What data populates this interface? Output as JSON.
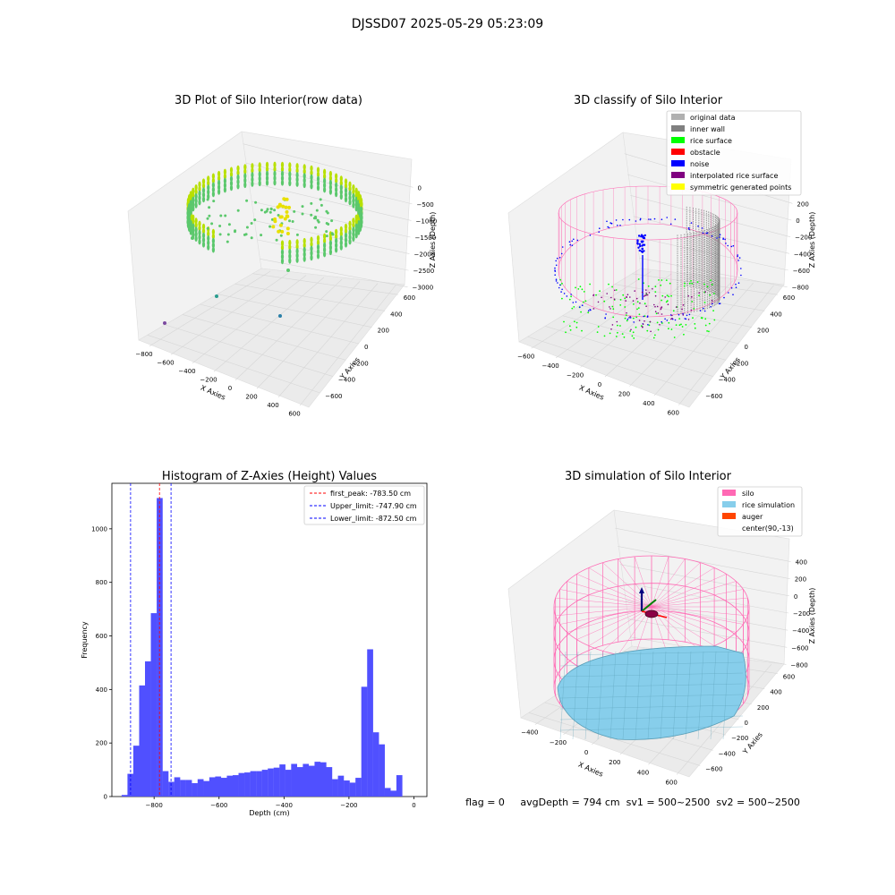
{
  "figure_title": "DJSSD07 2025-05-29 05:23:09",
  "status_line": "flag = 0     avgDepth = 794 cm  sv1 = 500~2500  sv2 = 500~2500",
  "colors": {
    "point_low": "#b8e000",
    "point_high": "#5bc86c",
    "inner_wall": "#808080",
    "rice_surface": "#00ff00",
    "noise": "#0000ff",
    "silo": "#ff69b4",
    "rice_sim": "#87ceeb",
    "hist_bar": "#5050ff"
  },
  "chart_data": [
    {
      "id": "raw",
      "type": "scatter3d",
      "title": "3D Plot of Silo Interior(row data)",
      "xlabel": "X Axies",
      "ylabel": "Y Axies",
      "zlabel": "Z Axies (Depth)",
      "xticks": [
        "−800",
        "−600",
        "−400",
        "−200",
        "0",
        "200",
        "400",
        "600"
      ],
      "yticks": [
        "−600",
        "−400",
        "−200",
        "0",
        "200",
        "400",
        "600"
      ],
      "zticks": [
        "0",
        "−500",
        "−1000",
        "−1500",
        "−2000",
        "−2500",
        "−3000"
      ],
      "xlim": [
        -800,
        600
      ],
      "ylim": [
        -650,
        650
      ],
      "zlim": [
        -3500,
        0
      ]
    },
    {
      "id": "classify",
      "type": "scatter3d",
      "title": "3D classify of Silo Interior",
      "xlabel": "X Axies",
      "ylabel": "Y Axies",
      "zlabel": "Z Axies (Depth)",
      "xticks": [
        "−600",
        "−400",
        "−200",
        "0",
        "200",
        "400",
        "600"
      ],
      "yticks": [
        "−600",
        "−400",
        "−200",
        "0",
        "200",
        "400",
        "600"
      ],
      "zticks": [
        "200",
        "0",
        "−200",
        "−400",
        "−600",
        "−800"
      ],
      "xlim": [
        -650,
        650
      ],
      "ylim": [
        -650,
        650
      ],
      "zlim": [
        -900,
        250
      ],
      "legend": [
        {
          "label": "original data",
          "color": "#b0b0b0"
        },
        {
          "label": "inner wall",
          "color": "#808080"
        },
        {
          "label": "rice surface",
          "color": "#00ff00"
        },
        {
          "label": "obstacle",
          "color": "#ff0000"
        },
        {
          "label": "noise",
          "color": "#0000ff"
        },
        {
          "label": "interpolated rice surface",
          "color": "#800080"
        },
        {
          "label": "symmetric generated points",
          "color": "#ffff00"
        }
      ]
    },
    {
      "id": "hist",
      "type": "bar",
      "title": "Histogram of Z-Axies (Height) Values",
      "xlabel": "Depth (cm)",
      "ylabel": "Frequency",
      "xlim": [
        -930,
        40
      ],
      "ylim": [
        0,
        1170
      ],
      "xticks": [
        {
          "v": -800,
          "t": "−800"
        },
        {
          "v": -600,
          "t": "−600"
        },
        {
          "v": -400,
          "t": "−400"
        },
        {
          "v": -200,
          "t": "−200"
        },
        {
          "v": 0,
          "t": "0"
        }
      ],
      "yticks": [
        0,
        200,
        400,
        600,
        800,
        1000
      ],
      "bin_start": -900,
      "bin_width": 18,
      "values": [
        6,
        85,
        190,
        415,
        505,
        685,
        1115,
        95,
        55,
        72,
        62,
        62,
        50,
        65,
        58,
        72,
        75,
        70,
        78,
        80,
        88,
        90,
        95,
        95,
        100,
        105,
        108,
        120,
        100,
        122,
        110,
        122,
        115,
        130,
        128,
        110,
        65,
        78,
        60,
        52,
        70,
        410,
        550,
        240,
        195,
        32,
        22,
        80
      ],
      "vlines": [
        {
          "x": -783.5,
          "color": "#ff0000",
          "label": "first_peak: -783.50 cm"
        },
        {
          "x": -747.9,
          "color": "#0000ff",
          "label": "Upper_limit: -747.90 cm"
        },
        {
          "x": -872.5,
          "color": "#0000ff",
          "label": "Lower_limit: -872.50 cm"
        }
      ]
    },
    {
      "id": "sim",
      "type": "surface3d",
      "title": "3D simulation of Silo Interior",
      "xlabel": "X Axies",
      "ylabel": "Y Axies",
      "zlabel": "Z Axies (Depth)",
      "xticks": [
        "−400",
        "−200",
        "0",
        "200",
        "400",
        "600"
      ],
      "yticks": [
        "−600",
        "−400",
        "−200",
        "0",
        "200",
        "400",
        "600"
      ],
      "zticks": [
        "400",
        "200",
        "0",
        "−200",
        "−400",
        "−600",
        "−800"
      ],
      "xlim": [
        -600,
        700
      ],
      "ylim": [
        -650,
        650
      ],
      "zlim": [
        -900,
        450
      ],
      "legend": [
        {
          "label": "silo",
          "color": "#ff69b4"
        },
        {
          "label": "rice simulation",
          "color": "#87ceeb"
        },
        {
          "label": "auger",
          "color": "#ff4500"
        },
        {
          "label": "center(90,-13)",
          "color": ""
        }
      ]
    }
  ]
}
